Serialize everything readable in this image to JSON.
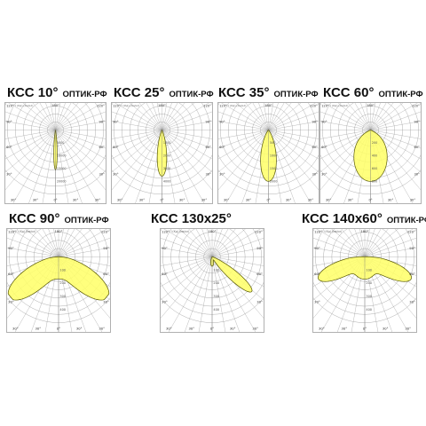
{
  "brand": "ОПТИК-РФ",
  "curve_color": "#ffff66",
  "curve_stroke": "#555500",
  "grid_color": "#9a9a9a",
  "diagrams": [
    {
      "title": "КСС 10°",
      "brand": "ОПТИК-РФ",
      "unit_label": "I (Кд) (лм/кл)",
      "top_label": "180°",
      "side_labels": [
        "120°",
        "90°",
        "60°",
        "30°",
        "0°",
        "30°",
        "60°",
        "90°",
        "120°"
      ],
      "radial_labels": [
        "5000",
        "10000",
        "15000",
        "20000"
      ],
      "curve": {
        "shape": "narrow",
        "half_angle_deg": 5,
        "reach": 0.62
      }
    },
    {
      "title": "КСС 25°",
      "brand": "ОПТИК-РФ",
      "unit_label": "I (Кд) (лм/кл)",
      "top_label": "180°",
      "side_labels": [
        "120°",
        "90°",
        "60°",
        "30°",
        "0°",
        "30°",
        "60°",
        "90°",
        "120°"
      ],
      "radial_labels": [
        "1000",
        "2000",
        "3000",
        "4000"
      ],
      "curve": {
        "shape": "narrow",
        "half_angle_deg": 12,
        "reach": 0.72
      }
    },
    {
      "title": "КСС 35°",
      "brand": "ОПТИК-РФ",
      "unit_label": "I (Кд) (лм/кл)",
      "top_label": "180°",
      "side_labels": [
        "120°",
        "90°",
        "60°",
        "30°",
        "0°",
        "30°",
        "60°",
        "90°",
        "120°"
      ],
      "radial_labels": [
        "500",
        "1000",
        "1500",
        "2000"
      ],
      "curve": {
        "shape": "narrow",
        "half_angle_deg": 18,
        "reach": 0.8
      }
    },
    {
      "title": "КСС 60°",
      "brand": "ОПТИК-РФ",
      "unit_label": "I (Кд) (лм/кл)",
      "top_label": "180°",
      "side_labels": [
        "120°",
        "90°",
        "60°",
        "30°",
        "0°",
        "30°",
        "60°",
        "90°",
        "120°"
      ],
      "radial_labels": [
        "200",
        "400",
        "600",
        "800"
      ],
      "curve": {
        "shape": "wide",
        "half_angle_deg": 30,
        "reach": 0.8
      }
    },
    {
      "title": "КСС 90°",
      "brand": "ОПТИК-РФ",
      "unit_label": "I (Кд) (лм/кл)",
      "top_label": "180°",
      "side_labels": [
        "120°",
        "90°",
        "60°",
        "30°",
        "0°",
        "30°",
        "60°",
        "90°",
        "120°"
      ],
      "radial_labels": [
        "100",
        "200",
        "300",
        "400"
      ],
      "curve": {
        "shape": "batwing",
        "half_angle_deg": 45,
        "reach": 0.95
      }
    },
    {
      "title": "КСС 130x25°",
      "brand": "",
      "unit_label": "I (Кд) (лм/кл)",
      "top_label": "180°",
      "side_labels": [
        "120°",
        "90°",
        "60°",
        "30°",
        "0°",
        "30°",
        "60°",
        "90°",
        "120°"
      ],
      "radial_labels": [
        "100",
        "200",
        "300",
        "400"
      ],
      "curve": {
        "shape": "asym",
        "half_angle_deg": 12,
        "reach": 0.8
      }
    },
    {
      "title": "КСС 140x60°",
      "brand": "ОПТИК-РФ",
      "unit_label": "I (Кд) (лм/кл)",
      "top_label": "180°",
      "side_labels": [
        "120°",
        "90°",
        "60°",
        "30°",
        "0°",
        "30°",
        "60°",
        "90°",
        "120°"
      ],
      "radial_labels": [
        "100",
        "200",
        "300",
        "400"
      ],
      "curve": {
        "shape": "flat",
        "half_angle_deg": 70,
        "reach": 0.85
      }
    }
  ]
}
